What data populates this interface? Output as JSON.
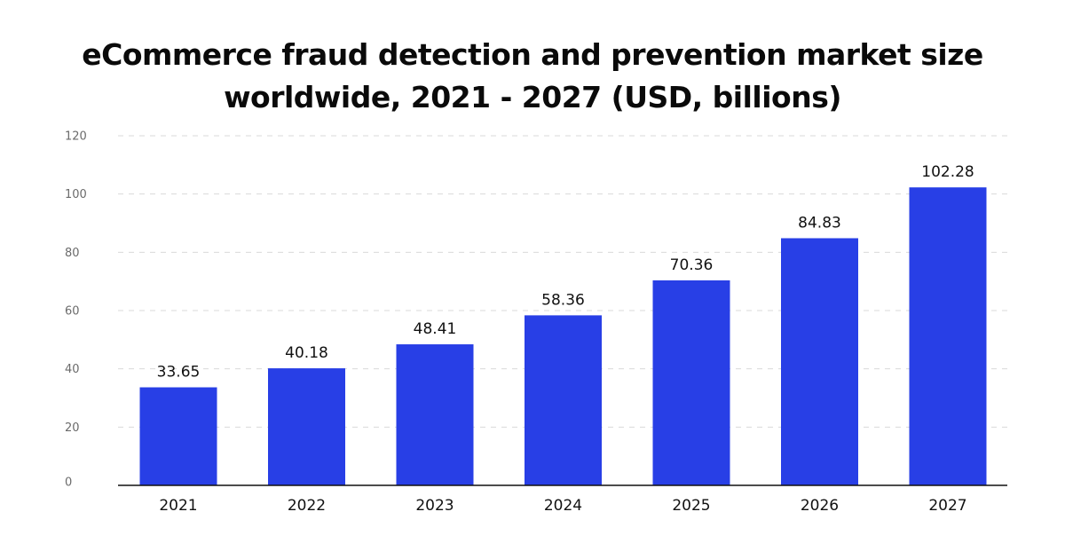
{
  "chart_data": {
    "type": "bar",
    "title_lines": [
      "eCommerce fraud detection and prevention market size",
      "worldwide, 2021 - 2027 (USD, billions)"
    ],
    "categories": [
      "2021",
      "2022",
      "2023",
      "2024",
      "2025",
      "2026",
      "2027"
    ],
    "values": [
      33.65,
      40.18,
      48.41,
      58.36,
      70.36,
      84.83,
      102.28
    ],
    "value_labels": [
      "33.65",
      "40.18",
      "48.41",
      "58.36",
      "70.36",
      "84.83",
      "102.28"
    ],
    "ylim": [
      0,
      120
    ],
    "yticks": [
      0,
      20,
      40,
      60,
      80,
      100,
      120
    ],
    "xlabel": "",
    "ylabel": "",
    "grid": true,
    "bar_color": "#283FE6"
  }
}
